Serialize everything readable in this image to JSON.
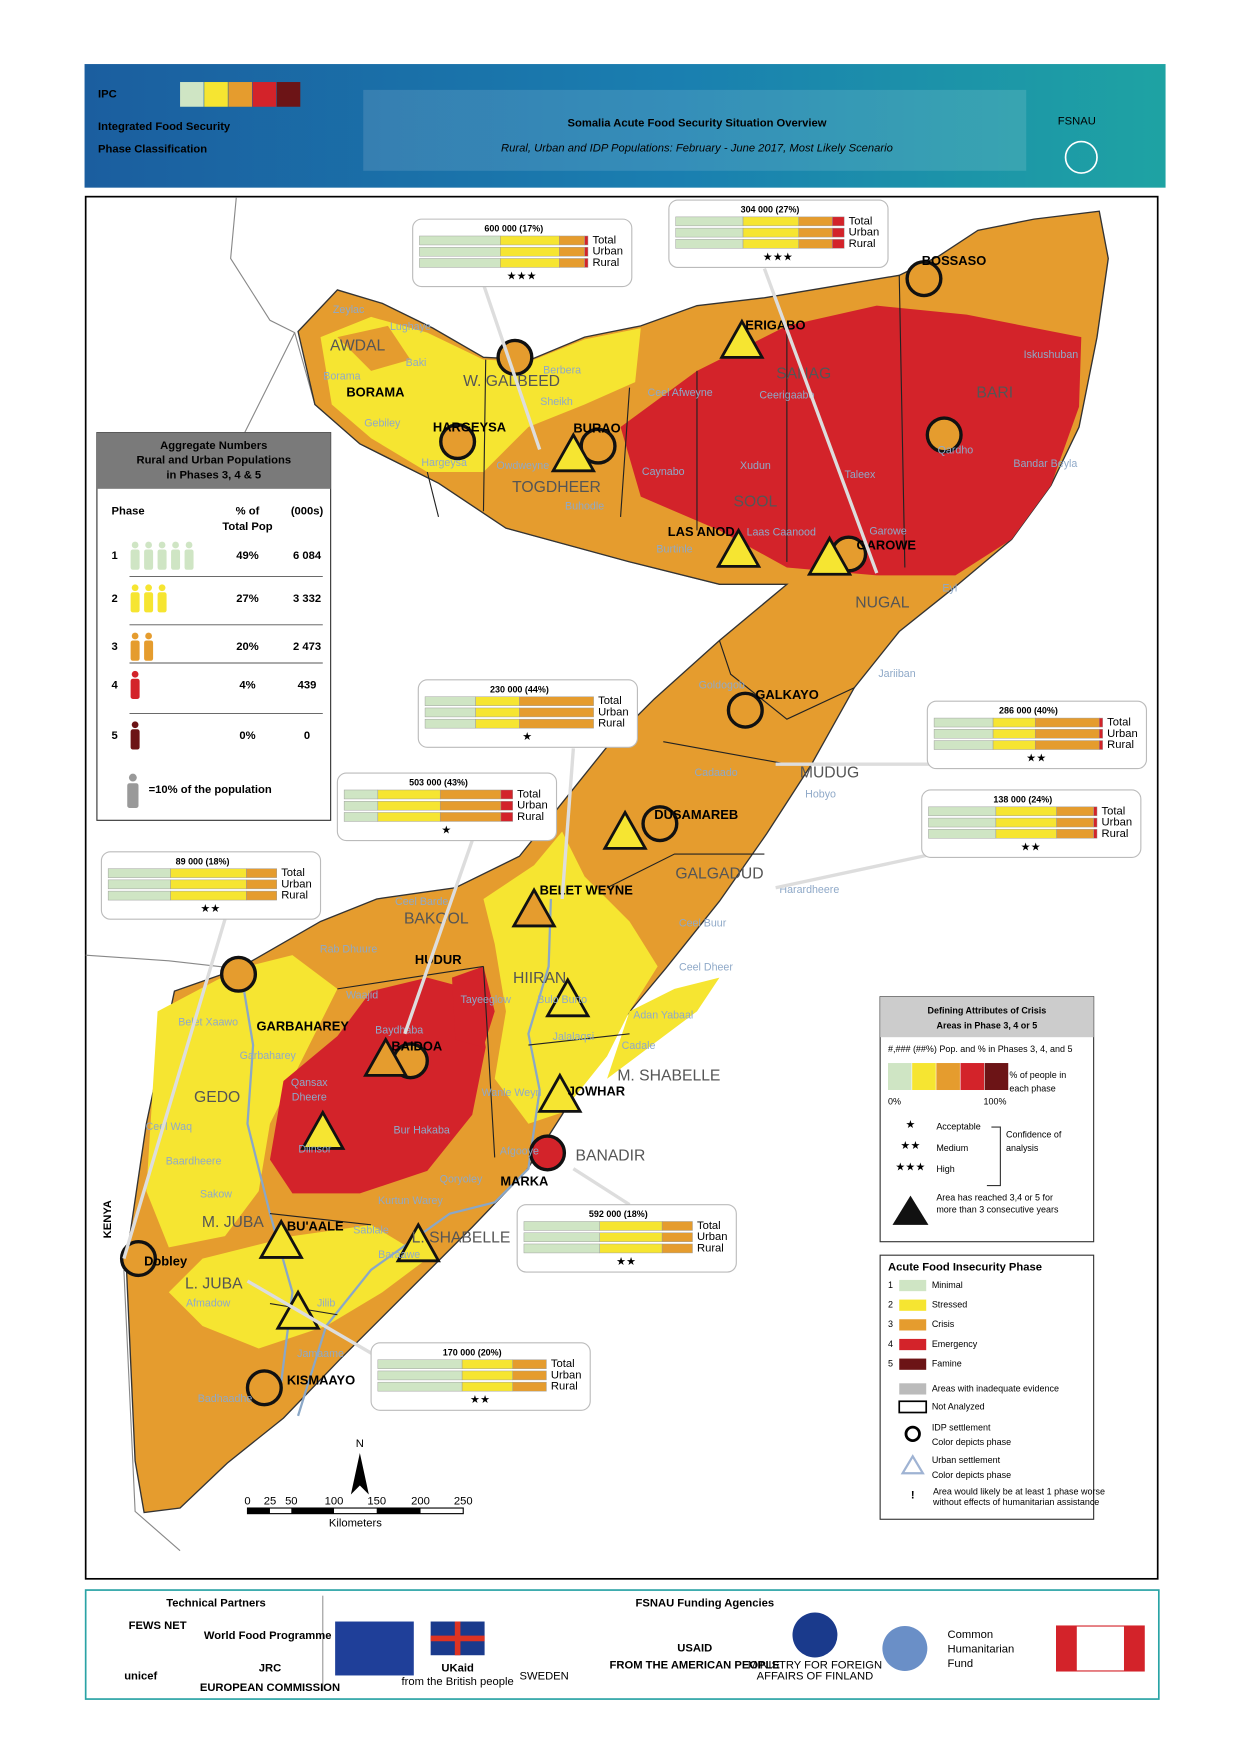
{
  "header": {
    "logo": "IPC",
    "org_name": [
      "Integrated Food Security",
      "Phase Classification"
    ],
    "title": "Somalia Acute Food Security Situation Overview",
    "subtitle": "Rural, Urban and IDP Populations: February - June 2017, Most Likely Scenario",
    "agency": "FSNAU"
  },
  "aggregate_table": {
    "title": [
      "Aggregate Numbers",
      "Rural and Urban Populations",
      "in Phases 3, 4 & 5"
    ],
    "columns": [
      "Phase",
      "% of",
      "Total Pop",
      "(000s)"
    ],
    "rows": [
      [
        "1",
        "49%",
        "6 084"
      ],
      [
        "2",
        "27%",
        "3 332"
      ],
      [
        "3",
        "20%",
        "2 473"
      ],
      [
        "4",
        "4%",
        "439"
      ],
      [
        "5",
        "0%",
        "0"
      ]
    ],
    "note": "=10% of the population"
  },
  "callouts": [
    {
      "label": "600 000 (17%)",
      "rows": [
        "Total",
        "Urban",
        "Rural"
      ],
      "confidence": "★★★"
    },
    {
      "label": "304 000 (27%)",
      "rows": [
        "Total",
        "Urban",
        "Rural"
      ],
      "confidence": "★★★"
    },
    {
      "label": "230 000 (44%)",
      "rows": [
        "Total",
        "Urban",
        "Rural"
      ],
      "confidence": "★"
    },
    {
      "label": "286 000 (40%)",
      "rows": [
        "Total",
        "Urban",
        "Rural"
      ],
      "confidence": "★★"
    },
    {
      "label": "503 000 (43%)",
      "rows": [
        "Total",
        "Urban",
        "Rural"
      ],
      "confidence": "★"
    },
    {
      "label": "138 000 (24%)",
      "rows": [
        "Total",
        "Urban",
        "Rural"
      ],
      "confidence": "★★"
    },
    {
      "label": "89 000 (18%)",
      "rows": [
        "Total",
        "Urban",
        "Rural"
      ],
      "confidence": "★★"
    },
    {
      "label": "592 000 (18%)",
      "rows": [
        "Total",
        "Urban",
        "Rural"
      ],
      "confidence": "★★"
    },
    {
      "label": "170 000 (20%)",
      "rows": [
        "Total",
        "Urban",
        "Rural"
      ],
      "confidence": "★★"
    }
  ],
  "regions": [
    "AWDAL",
    "W. GALBEED",
    "TOGDHEER",
    "SANAG",
    "BARI",
    "SOOL",
    "NUGAL",
    "MUDUG",
    "GALGADUD",
    "BAKOOL",
    "HIIRAN",
    "GEDO",
    "M. SHABELLE",
    "BANADIR",
    "L. SHABELLE",
    "M. JUBA",
    "L. JUBA"
  ],
  "towns": [
    "BOSSASO",
    "ERIGABO",
    "BORAMA",
    "HARGEYSA",
    "BURAO",
    "LAS ANOD",
    "GAROWE",
    "GALKAYO",
    "DUSAMAREB",
    "BELET WEYNE",
    "HUDUR",
    "GARBAHAREY",
    "BAIDOA",
    "JOWHAR",
    "MARKA",
    "BU'AALE",
    "Dobley",
    "KISMAAYO"
  ],
  "districts": [
    "Zeylac",
    "Lughaye",
    "Baki",
    "Borama",
    "Gebiley",
    "Berbera",
    "Sheikh",
    "Hargeysa",
    "Owdweyne",
    "Buhodle",
    "Ceel Afweyne",
    "Ceerigaabo",
    "Caynabo",
    "Xudun",
    "Taleex",
    "Laas Caanood",
    "Iskushuban",
    "Qardho",
    "Bandar Beyla",
    "Eyl",
    "Burtinle",
    "Garowe",
    "Jariiban",
    "Goldogob",
    "Hobyo",
    "Cadaado",
    "Ceel Buur",
    "Ceel Dheer",
    "Harardheere",
    "Ceel Barde",
    "Rab Dhuure",
    "Tayeeglow",
    "Waajid",
    "Baydhaba",
    "Bulo Burto",
    "Jalalaqsi",
    "Adan Yabaal",
    "Cadale",
    "Qansax",
    "Dheere",
    "Bur Hakaba",
    "Diinsor",
    "Wanle Weyn",
    "Afgooye",
    "Qoryoley",
    "Kurtun Warey",
    "Sablale",
    "Baraawe",
    "Baardheere",
    "Ceel Waq",
    "Belet Xaawo",
    "Garbaharey",
    "Sakow",
    "Jilib",
    "Afmadow",
    "Jamaame",
    "Badhaadhe"
  ],
  "country_label": "KENYA",
  "crisis_legend": {
    "title": [
      "Defining Attributes of Crisis",
      "Areas in Phase 3, 4 or 5"
    ],
    "format_note": "#,### (##%) Pop. and % in Phases 3, 4, and 5",
    "bar_note": [
      "% of people in",
      "each phase"
    ],
    "min": "0%",
    "max": "100%",
    "confidence": [
      {
        "stars": "★",
        "label": "Acceptable"
      },
      {
        "stars": "★★",
        "label": "Medium"
      },
      {
        "stars": "★★★",
        "label": "High"
      }
    ],
    "confidence_title": [
      "Confidence of",
      "analysis"
    ],
    "persistence": [
      "Area has reached 3,4 or 5 for",
      "more than 3 consecutive years"
    ]
  },
  "phase_legend": {
    "title": "Acute Food Insecurity Phase",
    "phases": [
      {
        "number": "1",
        "name": "Minimal",
        "color": "#cfe5c4"
      },
      {
        "number": "2",
        "name": "Stressed",
        "color": "#f6e531"
      },
      {
        "number": "3",
        "name": "Crisis",
        "color": "#e59c2e"
      },
      {
        "number": "4",
        "name": "Emergency",
        "color": "#d3232a"
      },
      {
        "number": "5",
        "name": "Famine",
        "color": "#6c1416"
      }
    ],
    "inadequate": "Areas with inadequate evidence",
    "not_analyzed": "Not Analyzed",
    "idp": [
      "IDP settlement",
      "Color depicts phase"
    ],
    "urban": [
      "Urban settlement",
      "Color depicts phase"
    ],
    "exclamation": "!",
    "humanitarian": [
      "Area would likely be at least 1 phase worse",
      "without effects of humanitarian assistance"
    ]
  },
  "scale_bar": {
    "north": "N",
    "ticks": [
      "0",
      "25",
      "50",
      "100",
      "150",
      "200",
      "250"
    ],
    "unit": "Kilometers"
  },
  "footer": {
    "partners_title": "Technical Partners",
    "partners": [
      "FEWS NET",
      "World Food Programme",
      "unicef",
      "JRC",
      "EUROPEAN COMMISSION"
    ],
    "funding_title": "FSNAU Funding Agencies",
    "funders": [
      "UKaid",
      "from the British people",
      "SWEDEN",
      "USAID",
      "FROM THE AMERICAN PEOPLE",
      "MINISTRY FOR FOREIGN",
      "AFFAIRS OF FINLAND",
      "Common",
      "Humanitarian",
      "Fund"
    ]
  }
}
